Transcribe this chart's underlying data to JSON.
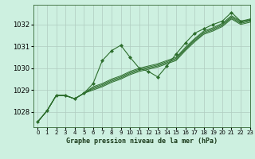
{
  "title": "Graphe pression niveau de la mer (hPa)",
  "bg_color": "#cdf0e0",
  "grid_color": "#b0ccc0",
  "line_color": "#2d6e2d",
  "marker_color": "#2d6e2d",
  "xlim": [
    -0.5,
    23
  ],
  "ylim": [
    1027.3,
    1032.9
  ],
  "yticks": [
    1028,
    1029,
    1030,
    1031,
    1032
  ],
  "xticks": [
    0,
    1,
    2,
    3,
    4,
    5,
    6,
    7,
    8,
    9,
    10,
    11,
    12,
    13,
    14,
    15,
    16,
    17,
    18,
    19,
    20,
    21,
    22,
    23
  ],
  "curve_main": [
    1027.55,
    1028.05,
    1028.75,
    1028.75,
    1028.6,
    1028.85,
    1029.3,
    1030.35,
    1030.8,
    1031.05,
    1030.5,
    1030.0,
    1029.85,
    1029.6,
    1030.1,
    1030.65,
    1031.15,
    1031.6,
    1031.8,
    1032.0,
    1032.15,
    1032.55,
    1032.15,
    1032.2
  ],
  "curve_linear1": [
    1027.55,
    1028.05,
    1028.75,
    1028.75,
    1028.6,
    1028.85,
    1029.0,
    1029.15,
    1029.35,
    1029.5,
    1029.7,
    1029.85,
    1029.95,
    1030.05,
    1030.2,
    1030.35,
    1030.8,
    1031.2,
    1031.55,
    1031.7,
    1031.9,
    1032.25,
    1032.0,
    1032.1
  ],
  "curve_linear2": [
    1027.55,
    1028.05,
    1028.75,
    1028.75,
    1028.6,
    1028.85,
    1029.05,
    1029.2,
    1029.4,
    1029.55,
    1029.75,
    1029.9,
    1030.0,
    1030.1,
    1030.25,
    1030.4,
    1030.85,
    1031.25,
    1031.6,
    1031.75,
    1031.95,
    1032.3,
    1032.05,
    1032.15
  ],
  "curve_linear3": [
    1027.55,
    1028.05,
    1028.75,
    1028.75,
    1028.6,
    1028.85,
    1029.1,
    1029.25,
    1029.45,
    1029.6,
    1029.8,
    1029.95,
    1030.05,
    1030.15,
    1030.3,
    1030.45,
    1030.9,
    1031.3,
    1031.65,
    1031.8,
    1032.0,
    1032.35,
    1032.1,
    1032.2
  ],
  "curve_linear4": [
    1027.55,
    1028.05,
    1028.75,
    1028.75,
    1028.6,
    1028.85,
    1029.15,
    1029.3,
    1029.5,
    1029.65,
    1029.85,
    1030.0,
    1030.1,
    1030.2,
    1030.35,
    1030.5,
    1030.95,
    1031.35,
    1031.7,
    1031.85,
    1032.05,
    1032.4,
    1032.15,
    1032.25
  ]
}
